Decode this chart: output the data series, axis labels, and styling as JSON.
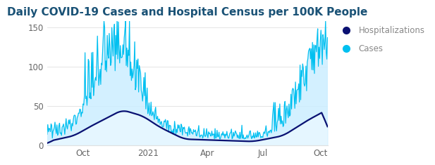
{
  "title": "Daily COVID-19 Cases and Hospital Census per 100K People",
  "title_color": "#1a5276",
  "title_fontsize": 11,
  "background_color": "#ffffff",
  "plot_bg_color": "#ffffff",
  "ylim": [
    0,
    158
  ],
  "yticks": [
    0,
    50,
    100,
    150
  ],
  "xtick_labels": [
    "Oct",
    "2021",
    "Apr",
    "Jul",
    "Oct"
  ],
  "cases_color": "#00c0f0",
  "cases_fill_color": "#cceeff",
  "hosp_color": "#0a1172",
  "legend_hosp_label": "Hospitalizations",
  "legend_cases_label": "Cases",
  "legend_text_color": "#888888",
  "grid_color": "#e0e0e0",
  "n_days": 430,
  "xtick_positions": [
    55,
    155,
    245,
    330,
    418
  ]
}
